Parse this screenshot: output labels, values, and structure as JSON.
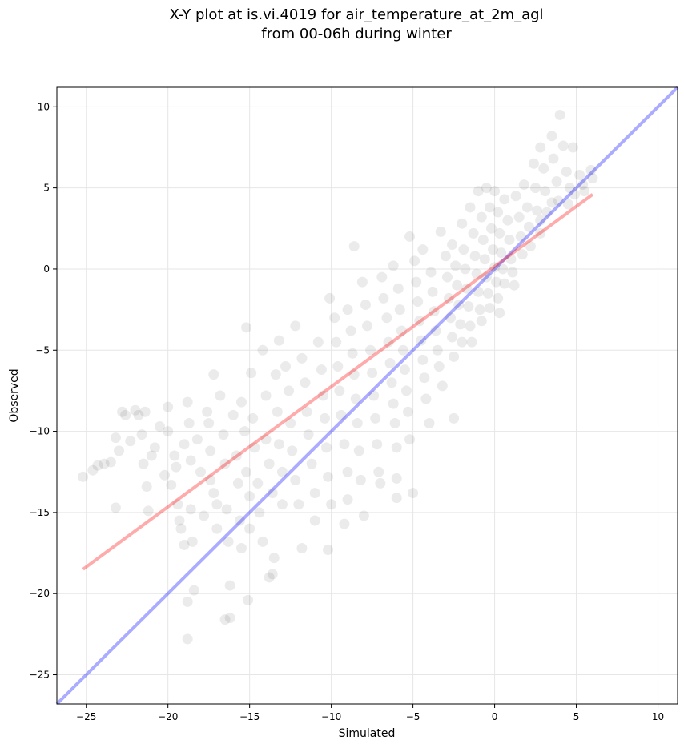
{
  "chart_data": {
    "type": "scatter",
    "title": "X-Y plot at is.vi.4019 for air_temperature_at_2m_agl",
    "subtitle": "from 00-06h during winter",
    "xlabel": "Simulated",
    "ylabel": "Observed",
    "xlim": [
      -26.8,
      11.2
    ],
    "ylim": [
      -26.8,
      11.2
    ],
    "xticks": [
      -25,
      -20,
      -15,
      -10,
      -5,
      0,
      5,
      10
    ],
    "yticks": [
      -25,
      -20,
      -15,
      -10,
      -5,
      0,
      5,
      10
    ],
    "xtick_labels": [
      "−25",
      "−20",
      "−15",
      "−10",
      "−5",
      "0",
      "5",
      "10"
    ],
    "ytick_labels": [
      "−25",
      "−20",
      "−15",
      "−10",
      "−5",
      "0",
      "5",
      "10"
    ],
    "grid": true,
    "point_color": "#000000",
    "point_opacity": 0.08,
    "identity_line": {
      "x": [
        -26.8,
        11.2
      ],
      "y": [
        -26.8,
        11.2
      ],
      "color": "#0000ff",
      "opacity": 0.33
    },
    "regression_line": {
      "x": [
        -25.2,
        6.0
      ],
      "y": [
        -18.5,
        4.6
      ],
      "color": "#ff0000",
      "opacity": 0.33
    },
    "points": [
      [
        -25.2,
        -12.8
      ],
      [
        -24.6,
        -12.4
      ],
      [
        -24.3,
        -12.1
      ],
      [
        -23.9,
        -12.0
      ],
      [
        -23.5,
        -11.9
      ],
      [
        -23.2,
        -10.4
      ],
      [
        -23.0,
        -11.2
      ],
      [
        -23.2,
        -14.7
      ],
      [
        -22.8,
        -8.8
      ],
      [
        -22.6,
        -9.0
      ],
      [
        -22.3,
        -10.6
      ],
      [
        -22.0,
        -8.7
      ],
      [
        -21.8,
        -9.0
      ],
      [
        -21.6,
        -10.2
      ],
      [
        -21.4,
        -8.8
      ],
      [
        -21.5,
        -12.0
      ],
      [
        -21.3,
        -13.4
      ],
      [
        -21.2,
        -14.9
      ],
      [
        -21.0,
        -11.5
      ],
      [
        -20.8,
        -11.0
      ],
      [
        -20.5,
        -9.7
      ],
      [
        -20.2,
        -12.7
      ],
      [
        -20.0,
        -8.5
      ],
      [
        -20.0,
        -10.0
      ],
      [
        -19.8,
        -13.3
      ],
      [
        -19.6,
        -11.5
      ],
      [
        -19.5,
        -12.2
      ],
      [
        -19.4,
        -14.5
      ],
      [
        -19.3,
        -15.5
      ],
      [
        -19.2,
        -16.0
      ],
      [
        -19.0,
        -10.8
      ],
      [
        -19.0,
        -17.0
      ],
      [
        -18.8,
        -8.2
      ],
      [
        -18.7,
        -9.5
      ],
      [
        -18.6,
        -11.8
      ],
      [
        -18.6,
        -14.8
      ],
      [
        -18.5,
        -16.8
      ],
      [
        -18.8,
        -20.5
      ],
      [
        -18.4,
        -19.8
      ],
      [
        -18.8,
        -22.8
      ],
      [
        -18.2,
        -10.5
      ],
      [
        -18.0,
        -12.5
      ],
      [
        -17.8,
        -15.2
      ],
      [
        -17.6,
        -8.8
      ],
      [
        -17.5,
        -9.5
      ],
      [
        -17.4,
        -11.2
      ],
      [
        -17.4,
        -13.0
      ],
      [
        -17.2,
        -13.8
      ],
      [
        -17.0,
        -14.5
      ],
      [
        -17.0,
        -16.0
      ],
      [
        -17.2,
        -6.5
      ],
      [
        -16.8,
        -7.8
      ],
      [
        -16.6,
        -10.2
      ],
      [
        -16.5,
        -12.0
      ],
      [
        -16.4,
        -14.8
      ],
      [
        -16.3,
        -16.8
      ],
      [
        -16.2,
        -19.5
      ],
      [
        -16.5,
        -21.6
      ],
      [
        -16.2,
        -21.5
      ],
      [
        -16.0,
        -9.0
      ],
      [
        -15.8,
        -11.5
      ],
      [
        -15.7,
        -13.2
      ],
      [
        -15.6,
        -15.5
      ],
      [
        -15.5,
        -17.2
      ],
      [
        -15.5,
        -8.2
      ],
      [
        -15.3,
        -10.0
      ],
      [
        -15.2,
        -12.5
      ],
      [
        -15.0,
        -14.0
      ],
      [
        -15.0,
        -16.0
      ],
      [
        -15.1,
        -20.4
      ],
      [
        -15.2,
        -3.6
      ],
      [
        -14.9,
        -6.4
      ],
      [
        -14.8,
        -9.2
      ],
      [
        -14.7,
        -11.0
      ],
      [
        -14.5,
        -13.2
      ],
      [
        -14.4,
        -15.0
      ],
      [
        -14.2,
        -16.8
      ],
      [
        -14.2,
        -5.0
      ],
      [
        -14.0,
        -7.8
      ],
      [
        -14.0,
        -10.5
      ],
      [
        -13.8,
        -12.0
      ],
      [
        -13.6,
        -13.8
      ],
      [
        -13.5,
        -17.8
      ],
      [
        -13.8,
        -19.0
      ],
      [
        -13.6,
        -18.8
      ],
      [
        -13.4,
        -6.5
      ],
      [
        -13.3,
        -8.8
      ],
      [
        -13.2,
        -10.8
      ],
      [
        -13.0,
        -12.5
      ],
      [
        -13.0,
        -14.5
      ],
      [
        -13.2,
        -4.4
      ],
      [
        -12.8,
        -6.0
      ],
      [
        -12.6,
        -7.5
      ],
      [
        -12.5,
        -9.5
      ],
      [
        -12.4,
        -11.2
      ],
      [
        -12.2,
        -13.0
      ],
      [
        -12.0,
        -14.5
      ],
      [
        -11.8,
        -17.2
      ],
      [
        -12.2,
        -3.5
      ],
      [
        -11.8,
        -5.5
      ],
      [
        -11.6,
        -7.0
      ],
      [
        -11.5,
        -8.8
      ],
      [
        -11.4,
        -10.2
      ],
      [
        -11.2,
        -12.0
      ],
      [
        -11.0,
        -13.8
      ],
      [
        -11.0,
        -15.5
      ],
      [
        -10.8,
        -4.5
      ],
      [
        -10.6,
        -6.2
      ],
      [
        -10.5,
        -7.8
      ],
      [
        -10.4,
        -9.2
      ],
      [
        -10.3,
        -11.0
      ],
      [
        -10.2,
        -12.8
      ],
      [
        -10.0,
        -14.5
      ],
      [
        -10.2,
        -17.3
      ],
      [
        -10.1,
        -1.8
      ],
      [
        -9.8,
        -3.0
      ],
      [
        -9.7,
        -4.5
      ],
      [
        -9.6,
        -6.0
      ],
      [
        -9.5,
        -7.5
      ],
      [
        -9.4,
        -9.0
      ],
      [
        -9.2,
        -10.8
      ],
      [
        -9.0,
        -12.5
      ],
      [
        -9.0,
        -14.2
      ],
      [
        -9.2,
        -15.7
      ],
      [
        -9.0,
        -2.5
      ],
      [
        -8.8,
        -3.8
      ],
      [
        -8.7,
        -5.2
      ],
      [
        -8.6,
        -6.5
      ],
      [
        -8.5,
        -8.0
      ],
      [
        -8.4,
        -9.5
      ],
      [
        -8.3,
        -11.2
      ],
      [
        -8.2,
        -13.0
      ],
      [
        -8.0,
        -15.2
      ],
      [
        -8.6,
        1.4
      ],
      [
        -8.1,
        -0.8
      ],
      [
        -7.9,
        -2.2
      ],
      [
        -7.8,
        -3.5
      ],
      [
        -7.6,
        -5.0
      ],
      [
        -7.5,
        -6.4
      ],
      [
        -7.4,
        -7.8
      ],
      [
        -7.3,
        -9.2
      ],
      [
        -7.2,
        -10.8
      ],
      [
        -7.1,
        -12.5
      ],
      [
        -7.0,
        -13.2
      ],
      [
        -6.9,
        -0.5
      ],
      [
        -6.8,
        -1.8
      ],
      [
        -6.6,
        -3.0
      ],
      [
        -6.5,
        -4.5
      ],
      [
        -6.4,
        -5.8
      ],
      [
        -6.3,
        -7.0
      ],
      [
        -6.2,
        -8.3
      ],
      [
        -6.1,
        -9.5
      ],
      [
        -6.0,
        -11.0
      ],
      [
        -6.0,
        -12.9
      ],
      [
        -6.0,
        -14.1
      ],
      [
        -6.2,
        0.2
      ],
      [
        -5.9,
        -1.2
      ],
      [
        -5.8,
        -2.5
      ],
      [
        -5.7,
        -3.8
      ],
      [
        -5.6,
        -5.0
      ],
      [
        -5.5,
        -6.2
      ],
      [
        -5.4,
        -7.5
      ],
      [
        -5.3,
        -8.8
      ],
      [
        -5.2,
        -10.5
      ],
      [
        -5.0,
        -13.8
      ],
      [
        -5.2,
        2.0
      ],
      [
        -4.9,
        0.5
      ],
      [
        -4.8,
        -0.8
      ],
      [
        -4.7,
        -2.0
      ],
      [
        -4.6,
        -3.2
      ],
      [
        -4.5,
        -4.4
      ],
      [
        -4.4,
        -5.6
      ],
      [
        -4.3,
        -6.7
      ],
      [
        -4.2,
        -8.0
      ],
      [
        -4.0,
        -9.5
      ],
      [
        -4.4,
        1.2
      ],
      [
        -3.9,
        -0.2
      ],
      [
        -3.8,
        -1.4
      ],
      [
        -3.7,
        -2.6
      ],
      [
        -3.6,
        -3.8
      ],
      [
        -3.5,
        -5.0
      ],
      [
        -3.4,
        -6.0
      ],
      [
        -3.2,
        -7.2
      ],
      [
        -3.3,
        2.3
      ],
      [
        -3.0,
        0.8
      ],
      [
        -2.9,
        -0.5
      ],
      [
        -2.8,
        -1.8
      ],
      [
        -2.7,
        -3.0
      ],
      [
        -2.6,
        -4.2
      ],
      [
        -2.5,
        -5.4
      ],
      [
        -2.5,
        -9.2
      ],
      [
        -2.6,
        1.5
      ],
      [
        -2.4,
        0.2
      ],
      [
        -2.3,
        -1.0
      ],
      [
        -2.2,
        -2.2
      ],
      [
        -2.1,
        -3.4
      ],
      [
        -2.0,
        -4.5
      ],
      [
        -2.0,
        2.8
      ],
      [
        -1.9,
        1.2
      ],
      [
        -1.8,
        0.0
      ],
      [
        -1.7,
        -1.2
      ],
      [
        -1.6,
        -2.3
      ],
      [
        -1.5,
        -3.5
      ],
      [
        -1.4,
        -4.5
      ],
      [
        -1.5,
        3.8
      ],
      [
        -1.3,
        2.2
      ],
      [
        -1.2,
        0.8
      ],
      [
        -1.1,
        -0.3
      ],
      [
        -1.0,
        -1.4
      ],
      [
        -0.9,
        -2.5
      ],
      [
        -0.8,
        -3.2
      ],
      [
        -1.0,
        4.8
      ],
      [
        -0.8,
        3.2
      ],
      [
        -0.7,
        1.8
      ],
      [
        -0.6,
        0.6
      ],
      [
        -0.5,
        -0.5
      ],
      [
        -0.4,
        -1.5
      ],
      [
        -0.3,
        -2.4
      ],
      [
        -0.5,
        5.0
      ],
      [
        -0.3,
        3.8
      ],
      [
        -0.2,
        2.5
      ],
      [
        -0.1,
        1.2
      ],
      [
        0.0,
        0.1
      ],
      [
        0.1,
        -0.8
      ],
      [
        0.2,
        -1.8
      ],
      [
        0.3,
        -2.7
      ],
      [
        0.0,
        4.8
      ],
      [
        0.2,
        3.5
      ],
      [
        0.3,
        2.2
      ],
      [
        0.4,
        1.0
      ],
      [
        0.5,
        0.0
      ],
      [
        0.6,
        -0.9
      ],
      [
        0.6,
        4.3
      ],
      [
        0.8,
        3.0
      ],
      [
        0.9,
        1.8
      ],
      [
        1.0,
        0.6
      ],
      [
        1.1,
        -0.2
      ],
      [
        1.2,
        -1.0
      ],
      [
        1.3,
        4.5
      ],
      [
        1.5,
        3.2
      ],
      [
        1.6,
        2.0
      ],
      [
        1.7,
        0.9
      ],
      [
        1.8,
        5.2
      ],
      [
        2.0,
        3.8
      ],
      [
        2.1,
        2.6
      ],
      [
        2.2,
        1.4
      ],
      [
        2.4,
        6.5
      ],
      [
        2.5,
        5.0
      ],
      [
        2.6,
        3.6
      ],
      [
        2.8,
        2.2
      ],
      [
        2.8,
        7.5
      ],
      [
        3.0,
        6.2
      ],
      [
        3.1,
        4.8
      ],
      [
        3.2,
        3.5
      ],
      [
        3.5,
        8.2
      ],
      [
        3.6,
        6.8
      ],
      [
        3.8,
        5.4
      ],
      [
        3.9,
        4.2
      ],
      [
        4.0,
        9.5
      ],
      [
        4.2,
        7.6
      ],
      [
        4.4,
        6.0
      ],
      [
        4.6,
        5.0
      ],
      [
        4.8,
        7.5
      ],
      [
        5.2,
        5.8
      ],
      [
        5.5,
        4.8
      ],
      [
        5.9,
        6.1
      ],
      [
        6.0,
        5.6
      ],
      [
        4.5,
        4.0
      ],
      [
        4.9,
        4.6
      ],
      [
        5.4,
        5.2
      ],
      [
        3.5,
        4.1
      ],
      [
        2.8,
        3.0
      ]
    ]
  }
}
